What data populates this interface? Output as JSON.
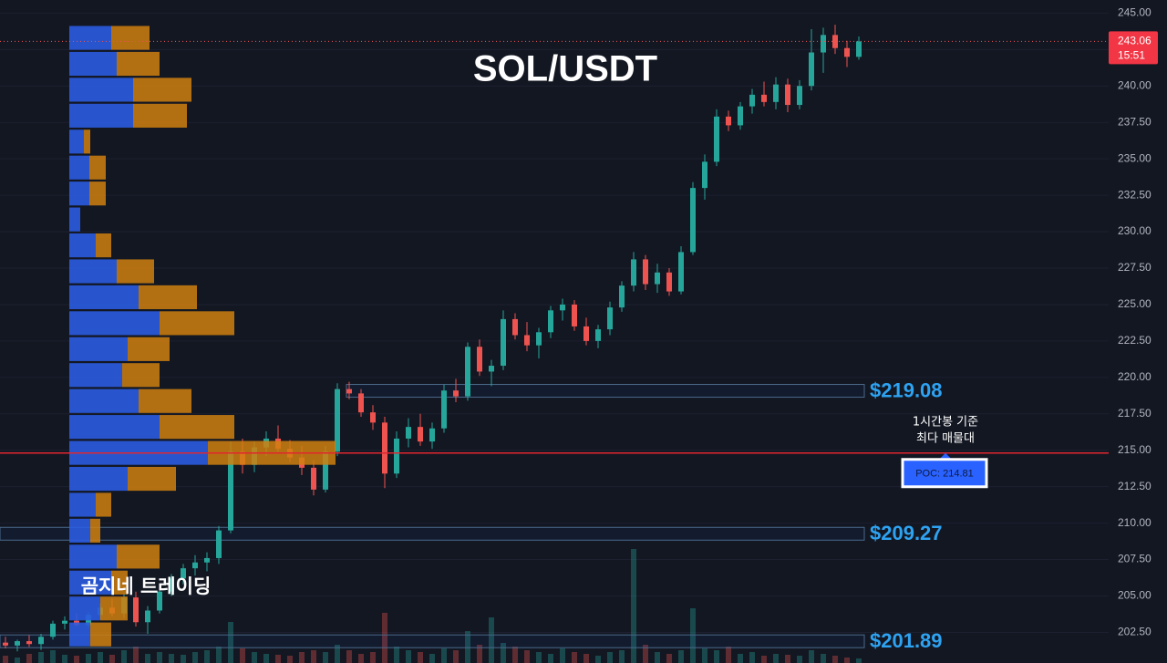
{
  "chart_data": {
    "type": "candlestick",
    "title": "SOL/USDT",
    "watermark": "곰지네 트레이딩",
    "ylim": [
      200.4,
      245.9
    ],
    "yticks": [
      {
        "value": 202.5,
        "label": "202.50"
      },
      {
        "value": 205,
        "label": "205.00"
      },
      {
        "value": 207.5,
        "label": "207.50"
      },
      {
        "value": 210,
        "label": "210.00"
      },
      {
        "value": 212.5,
        "label": "212.50"
      },
      {
        "value": 215,
        "label": "215.00"
      },
      {
        "value": 217.5,
        "label": "217.50"
      },
      {
        "value": 220,
        "label": "220.00"
      },
      {
        "value": 222.5,
        "label": "222.50"
      },
      {
        "value": 225,
        "label": "225.00"
      },
      {
        "value": 227.5,
        "label": "227.50"
      },
      {
        "value": 230,
        "label": "230.00"
      },
      {
        "value": 232.5,
        "label": "232.50"
      },
      {
        "value": 235,
        "label": "235.00"
      },
      {
        "value": 237.5,
        "label": "237.50"
      },
      {
        "value": 240,
        "label": "240.00"
      },
      {
        "value": 242.5,
        "label": "242.50"
      },
      {
        "value": 245,
        "label": "245.00"
      }
    ],
    "grid": true,
    "up_color": "#26a69a",
    "down_color": "#ef5350",
    "open": [
      201.8,
      201.6,
      201.9,
      201.7,
      202.2,
      203.1,
      203.3,
      203.0,
      203.7,
      204.2,
      203.8,
      204.9,
      203.2,
      204.0,
      205.3,
      206.2,
      206.9,
      207.3,
      207.6,
      209.5,
      214.9,
      214.0,
      215.2,
      215.8,
      215.1,
      214.5,
      213.8,
      212.3,
      214.9,
      219.2,
      218.9,
      217.6,
      216.9,
      213.4,
      215.8,
      216.6,
      215.6,
      216.5,
      219.1,
      218.7,
      222.1,
      220.4,
      220.8,
      224.0,
      222.9,
      222.2,
      223.1,
      224.6,
      225.0,
      223.5,
      222.5,
      223.3,
      224.8,
      226.3,
      228.1,
      226.4,
      227.2,
      225.9,
      228.6,
      233.0,
      234.8,
      237.9,
      237.3,
      238.6,
      239.4,
      238.9,
      240.1,
      238.7,
      240.0,
      242.3,
      243.5,
      242.6,
      242.0
    ],
    "high": [
      202.2,
      202.0,
      202.3,
      202.4,
      203.3,
      203.6,
      203.8,
      203.9,
      204.5,
      204.8,
      205.2,
      205.3,
      204.3,
      205.6,
      206.5,
      207.2,
      207.8,
      208.0,
      209.8,
      215.6,
      215.8,
      215.6,
      216.3,
      216.7,
      215.7,
      215.3,
      214.3,
      215.3,
      219.6,
      219.7,
      219.2,
      218.1,
      217.3,
      216.3,
      217.2,
      217.5,
      216.9,
      219.5,
      219.9,
      222.4,
      222.6,
      221.2,
      224.6,
      224.4,
      223.8,
      223.4,
      224.9,
      225.4,
      225.3,
      224.1,
      223.6,
      225.2,
      226.6,
      228.6,
      228.4,
      227.8,
      227.5,
      229.0,
      233.4,
      235.3,
      238.4,
      238.3,
      238.9,
      239.8,
      240.3,
      240.6,
      240.5,
      240.4,
      243.9,
      244.0,
      244.2,
      243.1,
      243.4
    ],
    "low": [
      201.4,
      201.2,
      201.5,
      201.3,
      202.0,
      202.7,
      202.9,
      202.8,
      203.4,
      203.6,
      203.5,
      202.9,
      202.4,
      203.8,
      205.0,
      205.8,
      206.4,
      206.7,
      207.2,
      209.3,
      213.4,
      213.5,
      214.6,
      214.9,
      214.2,
      213.3,
      211.9,
      212.1,
      214.6,
      218.5,
      217.3,
      216.4,
      212.4,
      213.1,
      215.2,
      215.3,
      215.1,
      216.2,
      218.3,
      218.4,
      220.1,
      219.4,
      220.5,
      222.6,
      221.8,
      221.3,
      222.7,
      223.9,
      223.2,
      222.2,
      222.0,
      222.9,
      224.5,
      225.9,
      226.0,
      225.8,
      225.6,
      225.7,
      228.4,
      232.2,
      234.5,
      236.9,
      237.0,
      238.1,
      238.6,
      238.4,
      238.2,
      238.4,
      239.7,
      240.9,
      242.2,
      241.3,
      241.8
    ],
    "close": [
      201.6,
      201.9,
      201.7,
      202.2,
      203.1,
      203.3,
      203.0,
      203.7,
      204.2,
      203.8,
      204.9,
      203.2,
      204.0,
      205.3,
      206.2,
      206.9,
      207.3,
      207.6,
      209.5,
      214.9,
      214.0,
      215.2,
      215.8,
      215.1,
      214.5,
      213.8,
      212.3,
      214.9,
      219.2,
      218.9,
      217.6,
      216.9,
      213.4,
      215.8,
      216.6,
      215.6,
      216.5,
      219.1,
      218.7,
      222.1,
      220.4,
      220.8,
      224.0,
      222.9,
      222.2,
      223.1,
      224.6,
      225.0,
      223.5,
      222.5,
      223.3,
      224.8,
      226.3,
      228.1,
      226.4,
      227.2,
      225.9,
      228.6,
      233.0,
      234.8,
      237.9,
      237.3,
      238.6,
      239.4,
      238.9,
      240.1,
      238.7,
      240.0,
      242.3,
      243.5,
      242.6,
      242.0,
      243.06
    ],
    "volume": [
      8,
      6,
      10,
      12,
      14,
      9,
      8,
      10,
      12,
      9,
      14,
      18,
      10,
      12,
      10,
      9,
      12,
      14,
      18,
      45,
      16,
      12,
      10,
      9,
      8,
      12,
      14,
      12,
      20,
      14,
      10,
      12,
      55,
      18,
      14,
      12,
      10,
      16,
      14,
      35,
      20,
      50,
      22,
      18,
      14,
      12,
      10,
      16,
      12,
      10,
      8,
      12,
      14,
      125,
      20,
      12,
      10,
      14,
      60,
      16,
      14,
      18,
      10,
      12,
      8,
      10,
      9,
      8,
      14,
      10,
      8,
      6,
      5
    ],
    "volume_profile": {
      "prices": [
        243.3,
        241.52,
        239.74,
        237.96,
        236.18,
        234.4,
        232.62,
        230.84,
        229.06,
        227.28,
        225.5,
        223.72,
        221.94,
        220.16,
        218.38,
        216.6,
        214.82,
        213.04,
        211.26,
        209.48,
        207.7,
        205.92,
        204.14,
        202.36
      ],
      "buy": [
        46,
        52,
        70,
        70,
        16,
        22,
        22,
        12,
        29,
        52,
        76,
        99,
        64,
        58,
        76,
        99,
        152,
        64,
        29,
        23,
        52,
        46,
        34,
        23
      ],
      "sell": [
        42,
        47,
        64,
        59,
        7,
        18,
        18,
        0,
        17,
        41,
        64,
        82,
        46,
        41,
        58,
        82,
        140,
        53,
        17,
        11,
        47,
        18,
        30,
        23
      ],
      "buy_color": "#2b5ce0",
      "sell_color": "#d0800f"
    },
    "levels": [
      {
        "value": 219.08,
        "label": "$219.08"
      },
      {
        "value": 209.27,
        "label": "$209.27"
      },
      {
        "value": 201.89,
        "label": "$201.89"
      }
    ],
    "poc": {
      "value": 214.81,
      "label": "POC: 214.81"
    },
    "annotation": [
      "1시간봉 기준",
      "최다 매물대"
    ],
    "last_price": {
      "value": 243.06,
      "label": "243.06"
    },
    "countdown": "15:51"
  }
}
